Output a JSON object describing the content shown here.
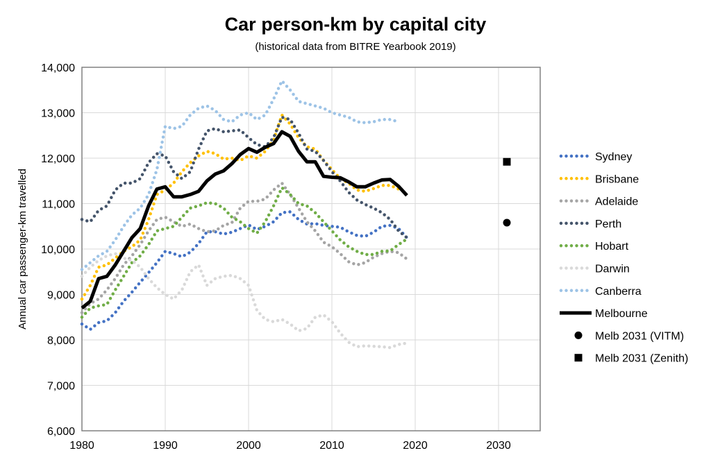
{
  "chart_data": {
    "type": "line",
    "title": "Car person-km by capital city",
    "subtitle": "(historical data from BITRE Yearbook 2019)",
    "xlabel": "",
    "ylabel": "Annual car passenger-km travelled",
    "xlim": [
      1980,
      2035
    ],
    "ylim": [
      6000,
      14000
    ],
    "x_ticks": [
      1980,
      1990,
      2000,
      2010,
      2020,
      2030
    ],
    "y_ticks": [
      "6,000",
      "7,000",
      "8,000",
      "9,000",
      "10,000",
      "11,000",
      "12,000",
      "13,000",
      "14,000"
    ],
    "y_tick_values": [
      6000,
      7000,
      8000,
      9000,
      10000,
      11000,
      12000,
      13000,
      14000
    ],
    "grid": true,
    "legend_position": "right",
    "years": [
      1980,
      1981,
      1982,
      1983,
      1984,
      1985,
      1986,
      1987,
      1988,
      1989,
      1990,
      1991,
      1992,
      1993,
      1994,
      1995,
      1996,
      1997,
      1998,
      1999,
      2000,
      2001,
      2002,
      2003,
      2004,
      2005,
      2006,
      2007,
      2008,
      2009,
      2010,
      2011,
      2012,
      2013,
      2014,
      2015,
      2016,
      2017,
      2018,
      2019
    ],
    "series": [
      {
        "name": "Sydney",
        "color": "#4472C4",
        "style": "dotted",
        "values": [
          8350,
          8230,
          8380,
          8420,
          8600,
          8850,
          9050,
          9270,
          9480,
          9700,
          9950,
          9900,
          9830,
          9930,
          10120,
          10380,
          10380,
          10330,
          10370,
          10450,
          10530,
          10430,
          10500,
          10600,
          10800,
          10820,
          10650,
          10550,
          10560,
          10520,
          10500,
          10480,
          10380,
          10300,
          10280,
          10370,
          10500,
          10520,
          10450,
          10250
        ]
      },
      {
        "name": "Brisbane",
        "color": "#FFC000",
        "style": "dotted",
        "values": [
          8900,
          9200,
          9600,
          9650,
          9800,
          9950,
          10050,
          10200,
          10650,
          11200,
          11300,
          11450,
          11700,
          11900,
          12050,
          12150,
          12100,
          11980,
          12000,
          11950,
          12050,
          12000,
          12150,
          12400,
          12950,
          12750,
          12450,
          12250,
          12200,
          11950,
          11750,
          11550,
          11450,
          11300,
          11270,
          11330,
          11400,
          11400,
          11320,
          null
        ]
      },
      {
        "name": "Adelaide",
        "color": "#A5A5A5",
        "style": "dotted",
        "values": [
          8600,
          8800,
          8900,
          9100,
          9350,
          9650,
          9850,
          10100,
          10400,
          10650,
          10700,
          10600,
          10500,
          10550,
          10450,
          10380,
          10400,
          10520,
          10580,
          10900,
          11050,
          11050,
          11100,
          11300,
          11450,
          11200,
          10900,
          10600,
          10400,
          10150,
          10050,
          9900,
          9720,
          9650,
          9700,
          9820,
          9900,
          9950,
          9920,
          9780
        ]
      },
      {
        "name": "Perth",
        "color": "#44546A",
        "style": "dotted",
        "values": [
          10650,
          10600,
          10850,
          10950,
          11300,
          11450,
          11450,
          11550,
          11900,
          12100,
          12050,
          11700,
          11550,
          11700,
          12200,
          12600,
          12650,
          12580,
          12600,
          12620,
          12450,
          12300,
          12250,
          12450,
          12900,
          12850,
          12550,
          12200,
          12150,
          11950,
          11700,
          11500,
          11250,
          11080,
          10980,
          10900,
          10800,
          10650,
          10400,
          10250
        ]
      },
      {
        "name": "Hobart",
        "color": "#70AD47",
        "style": "dotted",
        "values": [
          8500,
          8700,
          8750,
          8780,
          9100,
          9400,
          9700,
          9850,
          10100,
          10400,
          10450,
          10500,
          10700,
          10900,
          10950,
          11020,
          11000,
          10900,
          10700,
          10600,
          10450,
          10350,
          10600,
          10950,
          11350,
          11200,
          11000,
          10950,
          10800,
          10600,
          10400,
          10200,
          10050,
          9950,
          9880,
          9880,
          9950,
          9960,
          10100,
          10220
        ]
      },
      {
        "name": "Darwin",
        "color": "#D9D9D9",
        "style": "dotted",
        "values": [
          9400,
          9600,
          9750,
          9850,
          9900,
          9800,
          9750,
          9600,
          9350,
          9150,
          9000,
          8900,
          9100,
          9500,
          9650,
          9200,
          9350,
          9400,
          9420,
          9350,
          9200,
          8650,
          8450,
          8400,
          8450,
          8350,
          8200,
          8250,
          8500,
          8550,
          8400,
          8150,
          7950,
          7850,
          7870,
          7860,
          7850,
          7830,
          7900,
          7930
        ]
      },
      {
        "name": "Canberra",
        "color": "#9DC3E6",
        "style": "dotted",
        "values": [
          9550,
          9700,
          9850,
          9950,
          10200,
          10500,
          10750,
          10900,
          11200,
          11750,
          12700,
          12650,
          12700,
          12950,
          13100,
          13150,
          13050,
          12850,
          12800,
          12950,
          13000,
          12850,
          12950,
          13300,
          13700,
          13500,
          13250,
          13200,
          13150,
          13100,
          13000,
          12950,
          12900,
          12800,
          12780,
          12800,
          12850,
          12850,
          12800,
          null
        ]
      },
      {
        "name": "Melbourne",
        "color": "#000000",
        "style": "solid",
        "values": [
          8700,
          8850,
          9350,
          9400,
          9650,
          9950,
          10250,
          10450,
          10950,
          11320,
          11370,
          11150,
          11150,
          11200,
          11270,
          11500,
          11650,
          11720,
          11880,
          12080,
          12210,
          12130,
          12240,
          12320,
          12580,
          12480,
          12150,
          11920,
          11920,
          11600,
          11580,
          11570,
          11480,
          11370,
          11370,
          11450,
          11520,
          11530,
          11380,
          11180
        ]
      }
    ],
    "points": [
      {
        "name": "Melb 2031 (VITM)",
        "marker": "circle",
        "x": 2031,
        "y": 10580,
        "color": "#000000"
      },
      {
        "name": "Melb 2031 (Zenith)",
        "marker": "square",
        "x": 2031,
        "y": 11920,
        "color": "#000000"
      }
    ]
  }
}
